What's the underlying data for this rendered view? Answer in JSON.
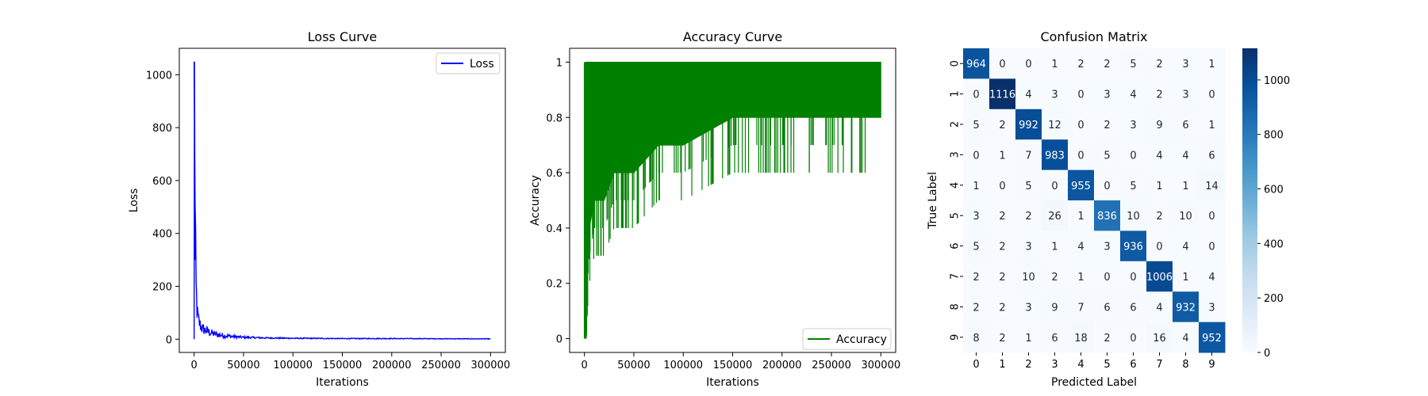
{
  "chart_data": [
    {
      "type": "line",
      "title": "Loss Curve",
      "xlabel": "Iterations",
      "ylabel": "Loss",
      "xlim": [
        -15000,
        315000
      ],
      "ylim": [
        -50,
        1100
      ],
      "xticks": [
        0,
        50000,
        100000,
        150000,
        200000,
        250000,
        300000
      ],
      "yticks": [
        0,
        200,
        400,
        600,
        800,
        1000
      ],
      "legend": "top-right",
      "grid": false,
      "series": [
        {
          "name": "Loss",
          "color": "#0000ff",
          "x": [
            0,
            500,
            1000,
            2000,
            3000,
            4000,
            5000,
            7000,
            10000,
            15000,
            20000,
            30000,
            40000,
            50000,
            75000,
            100000,
            150000,
            200000,
            250000,
            300000
          ],
          "y": [
            1050,
            800,
            450,
            180,
            95,
            70,
            55,
            40,
            30,
            22,
            16,
            11,
            8,
            6,
            4,
            3,
            2,
            2,
            1.5,
            1
          ],
          "noise_envelope": [
            0,
            0,
            200,
            120,
            80,
            70,
            60,
            45,
            40,
            35,
            25,
            18,
            12,
            8,
            5,
            4,
            3,
            3,
            2,
            2
          ]
        }
      ]
    },
    {
      "type": "line",
      "title": "Accuracy Curve",
      "xlabel": "Iterations",
      "ylabel": "Accuracy",
      "xlim": [
        -15000,
        315000
      ],
      "ylim": [
        -0.05,
        1.05
      ],
      "xticks": [
        0,
        50000,
        100000,
        150000,
        200000,
        250000,
        300000
      ],
      "yticks": [
        0.0,
        0.2,
        0.4,
        0.6,
        0.8,
        1.0
      ],
      "legend": "bottom-right",
      "grid": false,
      "series": [
        {
          "name": "Accuracy",
          "color": "#008000",
          "x": [
            0,
            1000,
            2000,
            3000,
            5000,
            10000,
            20000,
            30000,
            50000,
            75000,
            100000,
            150000,
            200000,
            250000,
            300000
          ],
          "upper": [
            0.0,
            1.0,
            1.0,
            1.0,
            1.0,
            1.0,
            1.0,
            1.0,
            1.0,
            1.0,
            1.0,
            1.0,
            1.0,
            1.0,
            1.0
          ],
          "lower": [
            0.0,
            0.1,
            0.2,
            0.3,
            0.4,
            0.5,
            0.5,
            0.6,
            0.6,
            0.7,
            0.7,
            0.8,
            0.8,
            0.8,
            0.8
          ]
        }
      ]
    },
    {
      "type": "heatmap",
      "title": "Confusion Matrix",
      "xlabel": "Predicted Label",
      "ylabel": "True Label",
      "x_categories": [
        "0",
        "1",
        "2",
        "3",
        "4",
        "5",
        "6",
        "7",
        "8",
        "9"
      ],
      "y_categories": [
        "0",
        "1",
        "2",
        "3",
        "4",
        "5",
        "6",
        "7",
        "8",
        "9"
      ],
      "colormap": "Blues",
      "colorbar_ticks": [
        0,
        200,
        400,
        600,
        800,
        1000
      ],
      "vmin": 0,
      "vmax": 1116,
      "matrix": [
        [
          964,
          0,
          0,
          1,
          2,
          2,
          5,
          2,
          3,
          1
        ],
        [
          0,
          1116,
          4,
          3,
          0,
          3,
          4,
          2,
          3,
          0
        ],
        [
          5,
          2,
          992,
          12,
          0,
          2,
          3,
          9,
          6,
          1
        ],
        [
          0,
          1,
          7,
          983,
          0,
          5,
          0,
          4,
          4,
          6
        ],
        [
          1,
          0,
          5,
          0,
          955,
          0,
          5,
          1,
          1,
          14
        ],
        [
          3,
          2,
          2,
          26,
          1,
          836,
          10,
          2,
          10,
          0
        ],
        [
          5,
          2,
          3,
          1,
          4,
          3,
          936,
          0,
          4,
          0
        ],
        [
          2,
          2,
          10,
          2,
          1,
          0,
          0,
          1006,
          1,
          4
        ],
        [
          2,
          2,
          3,
          9,
          7,
          6,
          6,
          4,
          932,
          3
        ],
        [
          8,
          2,
          1,
          6,
          18,
          2,
          0,
          16,
          4,
          952
        ]
      ]
    }
  ]
}
